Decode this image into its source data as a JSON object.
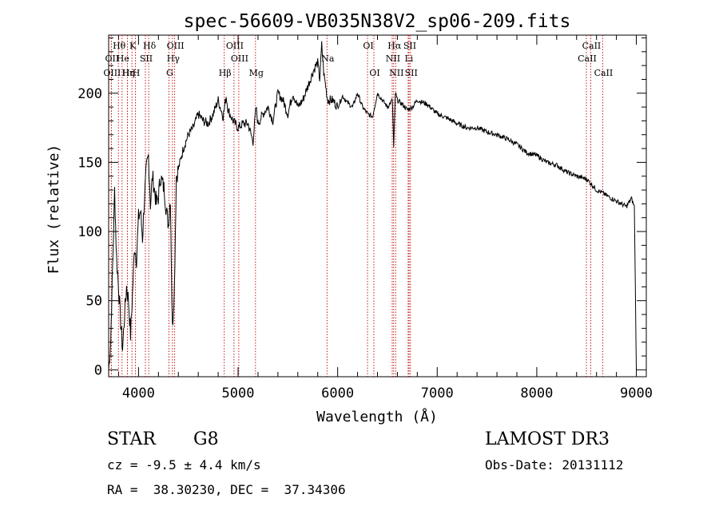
{
  "chart_data": {
    "type": "line",
    "title": "spec-56609-VB035N38V2_sp06-209.fits",
    "xlabel": "Wavelength (Å)",
    "ylabel": "Flux (relative)",
    "xlim": [
      3700,
      9100
    ],
    "ylim": [
      -5,
      242
    ],
    "x_ticks": [
      4000,
      5000,
      6000,
      7000,
      8000,
      9000
    ],
    "y_ticks": [
      0,
      50,
      100,
      150,
      200
    ],
    "grid": false,
    "line_color": "#000000",
    "marker_color": "#c00000",
    "series": [
      {
        "x": [
          3700,
          3720,
          3740,
          3760,
          3780,
          3800,
          3820,
          3840,
          3860,
          3880,
          3900,
          3920,
          3940,
          3960,
          3980,
          4000,
          4020,
          4040,
          4060,
          4080,
          4100,
          4120,
          4140,
          4160,
          4180,
          4200,
          4220,
          4240,
          4260,
          4280,
          4300,
          4320,
          4340,
          4360,
          4380,
          4400,
          4450,
          4500,
          4550,
          4600,
          4650,
          4700,
          4750,
          4800,
          4850,
          4880,
          4900,
          4950,
          5000,
          5050,
          5100,
          5150,
          5180,
          5200,
          5250,
          5300,
          5350,
          5400,
          5450,
          5500,
          5550,
          5600,
          5650,
          5700,
          5750,
          5780,
          5800,
          5820,
          5840,
          5860,
          5880,
          5900,
          5950,
          6000,
          6050,
          6100,
          6150,
          6200,
          6250,
          6300,
          6350,
          6400,
          6450,
          6500,
          6550,
          6563,
          6580,
          6600,
          6650,
          6700,
          6750,
          6800,
          6900,
          7000,
          7100,
          7200,
          7300,
          7400,
          7500,
          7600,
          7700,
          7800,
          7900,
          8000,
          8100,
          8200,
          8300,
          8400,
          8500,
          8540,
          8600,
          8660,
          8700,
          8800,
          8850,
          8900,
          8950,
          8980,
          9000
        ],
        "y": [
          0,
          20,
          75,
          130,
          80,
          60,
          35,
          15,
          40,
          60,
          50,
          25,
          55,
          90,
          80,
          110,
          115,
          95,
          125,
          145,
          155,
          120,
          140,
          130,
          120,
          125,
          140,
          135,
          130,
          115,
          105,
          125,
          30,
          60,
          140,
          145,
          160,
          170,
          175,
          185,
          180,
          178,
          185,
          195,
          183,
          198,
          188,
          180,
          175,
          178,
          178,
          165,
          190,
          178,
          185,
          190,
          180,
          200,
          195,
          185,
          200,
          190,
          195,
          205,
          215,
          220,
          222,
          210,
          235,
          215,
          205,
          195,
          195,
          190,
          198,
          193,
          190,
          200,
          190,
          185,
          183,
          200,
          195,
          190,
          195,
          160,
          200,
          195,
          192,
          188,
          190,
          195,
          192,
          185,
          182,
          178,
          175,
          175,
          172,
          170,
          167,
          163,
          157,
          155,
          150,
          148,
          143,
          140,
          138,
          135,
          130,
          128,
          126,
          122,
          120,
          118,
          124,
          118,
          0
        ]
      }
    ],
    "line_markers": [
      {
        "label": "Hθ",
        "x": 3798,
        "row": 1
      },
      {
        "label": "OII",
        "x": 3727,
        "row": 2
      },
      {
        "label": "OIII",
        "x": 3727,
        "row": 3
      },
      {
        "label": "K",
        "x": 3934,
        "row": 1
      },
      {
        "label": "H",
        "x": 3969,
        "row": 3
      },
      {
        "label": "He",
        "x": 3835,
        "row": 2
      },
      {
        "label": "Hε",
        "x": 3889,
        "row": 3
      },
      {
        "label": "SII",
        "x": 4069,
        "row": 2
      },
      {
        "label": "Hδ",
        "x": 4102,
        "row": 1
      },
      {
        "label": "Hη",
        "x": 3889,
        "row": 3
      },
      {
        "label": "OIII",
        "x": 4363,
        "row": 1
      },
      {
        "label": "Hγ",
        "x": 4341,
        "row": 2
      },
      {
        "label": "G",
        "x": 4305,
        "row": 3
      },
      {
        "label": "Hβ",
        "x": 4861,
        "row": 3
      },
      {
        "label": "OIII",
        "x": 4959,
        "row": 1
      },
      {
        "label": "OIII",
        "x": 5007,
        "row": 2
      },
      {
        "label": "Mg",
        "x": 5175,
        "row": 3
      },
      {
        "label": "Na",
        "x": 5893,
        "row": 2
      },
      {
        "label": "OI",
        "x": 6300,
        "row": 1
      },
      {
        "label": "OI",
        "x": 6364,
        "row": 3
      },
      {
        "label": "Hα",
        "x": 6563,
        "row": 1
      },
      {
        "label": "NII",
        "x": 6548,
        "row": 2
      },
      {
        "label": "NII",
        "x": 6583,
        "row": 3
      },
      {
        "label": "SII",
        "x": 6717,
        "row": 1
      },
      {
        "label": "Li",
        "x": 6708,
        "row": 2
      },
      {
        "label": "SII",
        "x": 6731,
        "row": 3
      },
      {
        "label": "CaII",
        "x": 8542,
        "row": 1
      },
      {
        "label": "CaII",
        "x": 8498,
        "row": 2
      },
      {
        "label": "CaII",
        "x": 8662,
        "row": 3
      }
    ]
  },
  "footer": {
    "object_class": "STAR",
    "subclass": "G8",
    "survey": "LAMOST DR3",
    "cz_line": "cz = -9.5 ± 4.4 km/s",
    "obs_date_line": "Obs-Date: 20131112",
    "radec_line": "RA =  38.30230, DEC =  37.34306"
  }
}
